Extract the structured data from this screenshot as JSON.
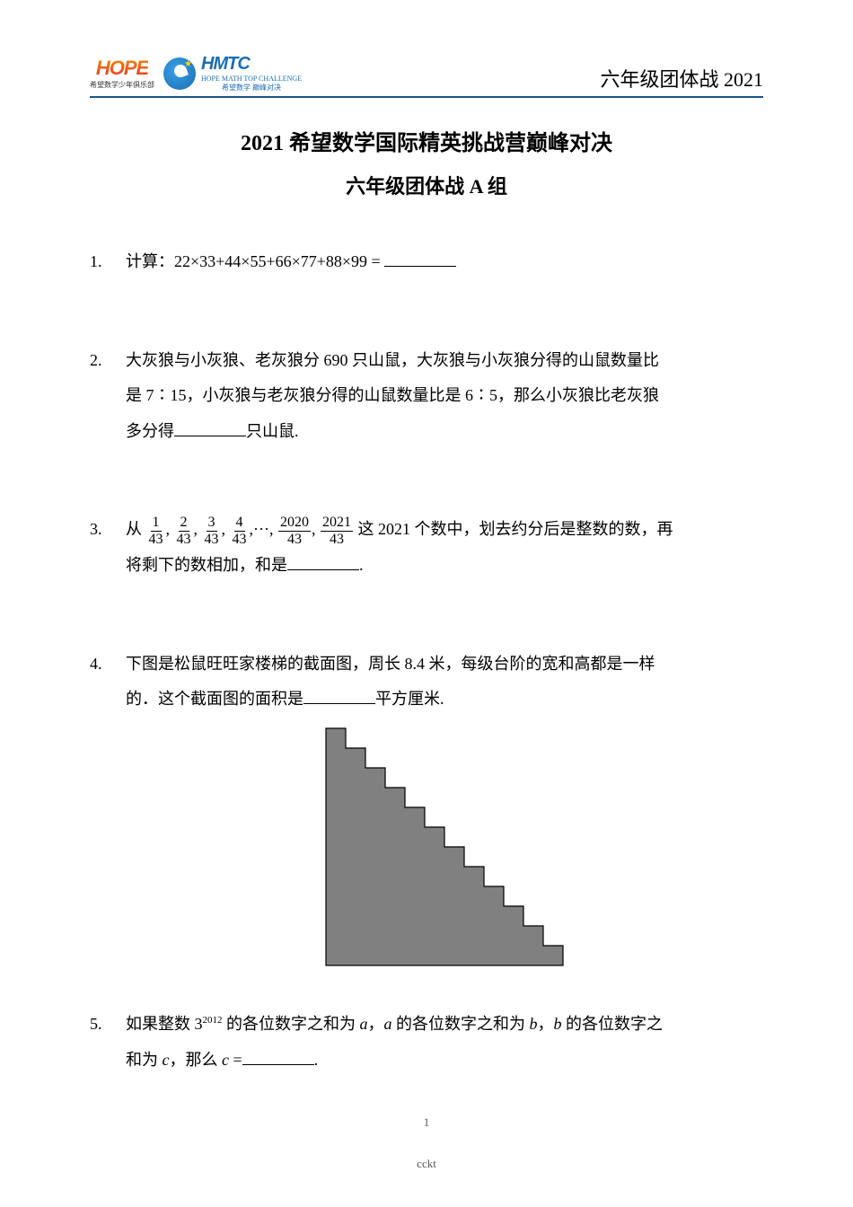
{
  "header": {
    "logo_hope": "HOPE",
    "logo_hope_sub": "希望数学少年俱乐部",
    "logo_hmtc": "HMTC",
    "logo_hmtc_sub1": "HOPE MATH TOP CHALLENGE",
    "logo_hmtc_sub2": "希望数学 巅峰对决",
    "right": "六年级团体战 2021"
  },
  "title": {
    "main": "2021 希望数学国际精英挑战营巅峰对决",
    "sub": "六年级团体战 A 组"
  },
  "problems": [
    {
      "num": "1.",
      "text_before": "计算：22×33+44×55+66×77+88×99 = ",
      "text_after": ""
    },
    {
      "num": "2.",
      "line1": "大灰狼与小灰狼、老灰狼分 690 只山鼠，大灰狼与小灰狼分得的山鼠数量比",
      "line2_before": "是 7∶15，小灰狼与老灰狼分得的山鼠数量比是 6∶5，那么小灰狼比老灰狼",
      "line3_before": "多分得",
      "line3_after": "只山鼠."
    },
    {
      "num": "3.",
      "prefix": "从",
      "fractions": [
        {
          "n": "1",
          "d": "43"
        },
        {
          "n": "2",
          "d": "43"
        },
        {
          "n": "3",
          "d": "43"
        },
        {
          "n": "4",
          "d": "43"
        }
      ],
      "ellipsis": ",···,",
      "fractions2": [
        {
          "n": "2020",
          "d": "43"
        },
        {
          "n": "2021",
          "d": "43"
        }
      ],
      "mid": "这 2021 个数中，划去约分后是整数的数，再",
      "line2_before": "将剩下的数相加，和是",
      "line2_after": "."
    },
    {
      "num": "4.",
      "line1": "下图是松鼠旺旺家楼梯的截面图，周长 8.4 米，每级台阶的宽和高都是一样",
      "line2_before": "的．这个截面图的面积是",
      "line2_after": "平方厘米.",
      "staircase": {
        "steps": 12,
        "step_size": 22,
        "fill": "#808080",
        "stroke": "#000000",
        "stroke_width": 1.2
      }
    },
    {
      "num": "5.",
      "line1_a": "如果整数 3",
      "line1_exp": "2012",
      "line1_b": " 的各位数字之和为 ",
      "line1_c": "，",
      "line1_d": " 的各位数字之和为 ",
      "line1_e": "，",
      "line1_f": " 的各位数字之",
      "line2_before": "和为 ",
      "line2_mid": "，那么 ",
      "line2_after": " =",
      "line2_period": ".",
      "var_a": "a",
      "var_b": "b",
      "var_c": "c"
    }
  ],
  "footer": {
    "page": "1",
    "watermark": "cckt"
  }
}
